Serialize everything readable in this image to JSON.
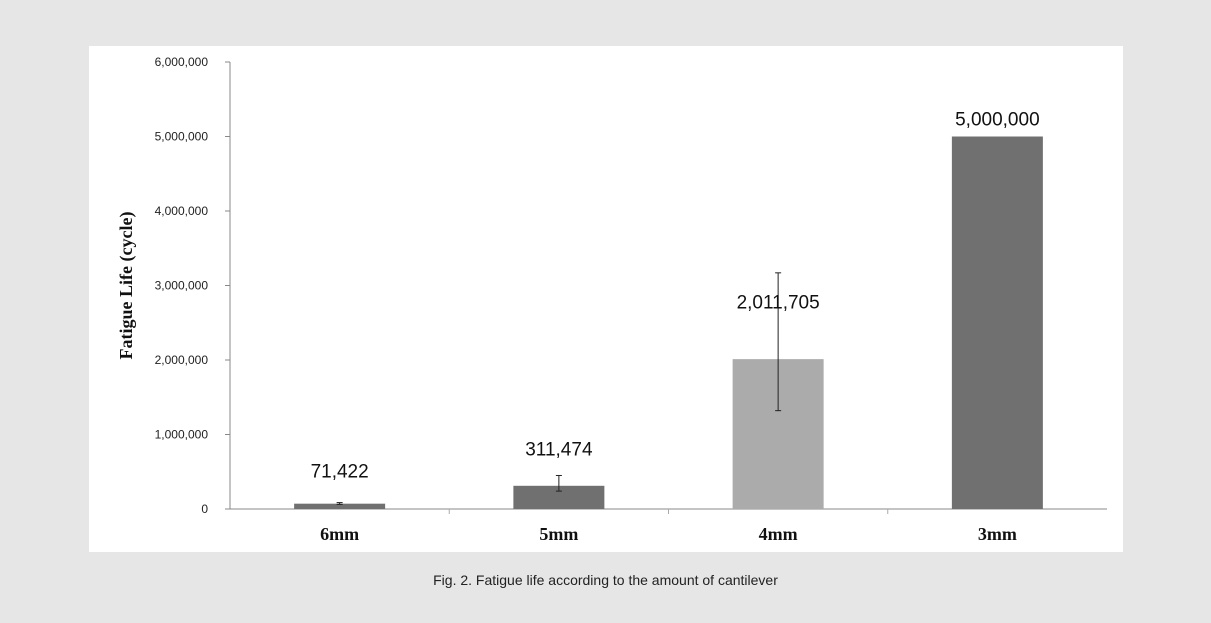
{
  "chart_data": {
    "type": "bar",
    "categories": [
      "6mm",
      "5mm",
      "4mm",
      "3mm"
    ],
    "values": [
      71422,
      311474,
      2011705,
      5000000
    ],
    "value_labels": [
      "71,422",
      "311,474",
      "2,011,705",
      "5,000,000"
    ],
    "error_bars": [
      {
        "low": 62000,
        "high": 86000
      },
      {
        "low": 240000,
        "high": 450000
      },
      {
        "low": 1320000,
        "high": 3170000
      },
      null
    ],
    "bar_colors": [
      "#707070",
      "#707070",
      "#ababab",
      "#707070"
    ],
    "ylabel": "Fatigue Life (cycle)",
    "xlabel": "",
    "ylim": [
      0,
      6000000
    ],
    "yticks": [
      0,
      1000000,
      2000000,
      3000000,
      4000000,
      5000000,
      6000000
    ],
    "ytick_labels": [
      "0",
      "1,000,000",
      "2,000,000",
      "3,000,000",
      "4,000,000",
      "5,000,000",
      "6,000,000"
    ],
    "grid": false,
    "legend": "none"
  },
  "caption": "Fig. 2. Fatigue life according to the amount of cantilever"
}
